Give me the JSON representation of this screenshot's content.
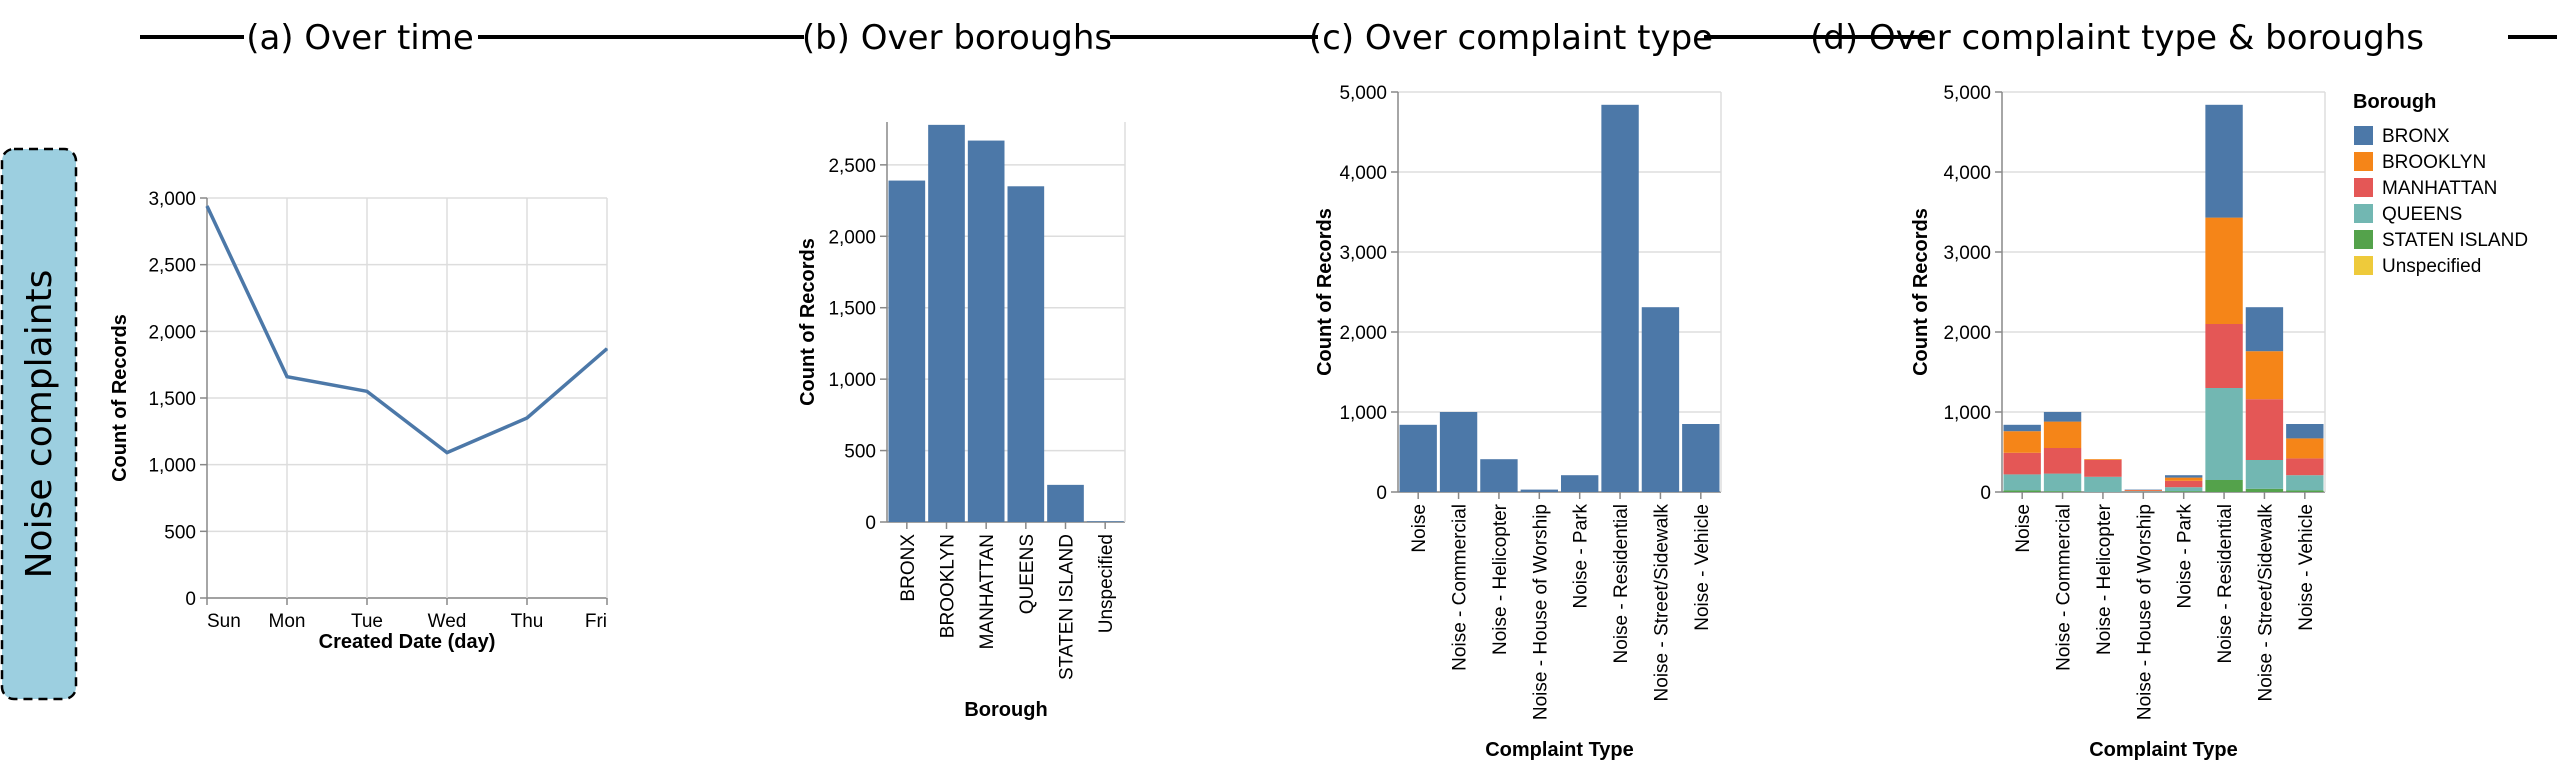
{
  "row_label": "Noise complaints",
  "colors": {
    "bar": "#4c78a8",
    "row_label_bg": "#9ccfe0",
    "BRONX": "#4c78a8",
    "BROOKLYN": "#f58518",
    "MANHATTAN": "#e45756",
    "QUEENS": "#72b7b2",
    "STATEN ISLAND": "#54a24b",
    "Unspecified": "#eeca3b"
  },
  "legend": {
    "title": "Borough",
    "items": [
      "BRONX",
      "BROOKLYN",
      "MANHATTAN",
      "QUEENS",
      "STATEN ISLAND",
      "Unspecified"
    ]
  },
  "chart_data": [
    {
      "id": "a",
      "title": "(a) Over time",
      "type": "line",
      "categories": [
        "Sun",
        "Mon",
        "Tue",
        "Wed",
        "Thu",
        "Fri"
      ],
      "values": [
        2940,
        1660,
        1550,
        1090,
        1350,
        1870
      ],
      "xlabel": "Created Date (day)",
      "ylabel": "Count of Records",
      "ylim": [
        0,
        3000
      ],
      "yticks": [
        0,
        500,
        1000,
        1500,
        2000,
        2500,
        3000
      ],
      "grid": true
    },
    {
      "id": "b",
      "title": "(b) Over boroughs",
      "type": "bar",
      "categories": [
        "BRONX",
        "BROOKLYN",
        "MANHATTAN",
        "QUEENS",
        "STATEN ISLAND",
        "Unspecified"
      ],
      "values": [
        2390,
        2780,
        2670,
        2350,
        260,
        5
      ],
      "xlabel": "Borough",
      "ylabel": "Count of Records",
      "ylim": [
        0,
        2800
      ],
      "yticks": [
        0,
        500,
        1000,
        1500,
        2000,
        2500
      ],
      "grid": true
    },
    {
      "id": "c",
      "title": "(c) Over complaint type",
      "type": "bar",
      "categories": [
        "Noise",
        "Noise - Commercial",
        "Noise - Helicopter",
        "Noise - House of Worship",
        "Noise - Park",
        "Noise - Residential",
        "Noise - Street/Sidewalk",
        "Noise - Vehicle"
      ],
      "values": [
        840,
        1000,
        410,
        30,
        210,
        4840,
        2310,
        850
      ],
      "xlabel": "Complaint Type",
      "ylabel": "Count of Records",
      "ylim": [
        0,
        5000
      ],
      "yticks": [
        0,
        1000,
        2000,
        3000,
        4000,
        5000
      ],
      "grid": true
    },
    {
      "id": "d",
      "title": "(d) Over complaint type & boroughs",
      "type": "bar",
      "stacked": true,
      "categories": [
        "Noise",
        "Noise - Commercial",
        "Noise - Helicopter",
        "Noise - House of Worship",
        "Noise - Park",
        "Noise - Residential",
        "Noise - Street/Sidewalk",
        "Noise - Vehicle"
      ],
      "series": [
        {
          "name": "STATEN ISLAND",
          "values": [
            20,
            10,
            0,
            0,
            10,
            150,
            40,
            20
          ]
        },
        {
          "name": "QUEENS",
          "values": [
            200,
            220,
            190,
            10,
            50,
            1150,
            360,
            190
          ]
        },
        {
          "name": "MANHATTAN",
          "values": [
            270,
            320,
            210,
            10,
            80,
            800,
            760,
            210
          ]
        },
        {
          "name": "BROOKLYN",
          "values": [
            270,
            330,
            10,
            5,
            40,
            1330,
            600,
            250
          ]
        },
        {
          "name": "BRONX",
          "values": [
            80,
            120,
            0,
            5,
            30,
            1410,
            550,
            180
          ]
        }
      ],
      "xlabel": "Complaint Type",
      "ylabel": "Count of Records",
      "ylim": [
        0,
        5000
      ],
      "yticks": [
        0,
        1000,
        2000,
        3000,
        4000,
        5000
      ],
      "grid": true
    }
  ]
}
